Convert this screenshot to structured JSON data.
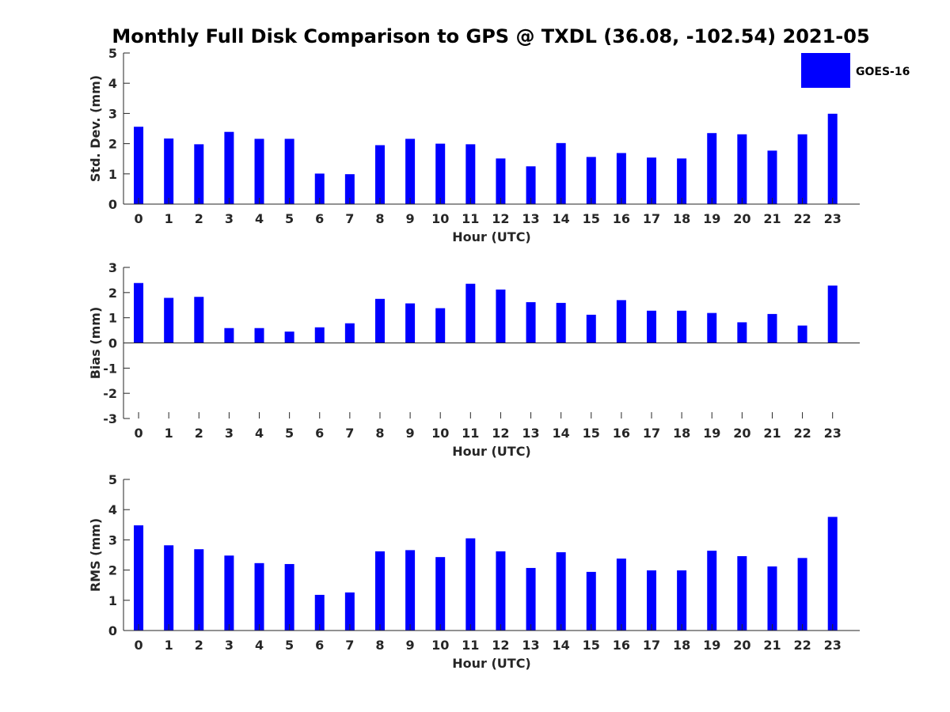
{
  "chart_data": {
    "title": "Monthly Full Disk Comparison to GPS @ TXDL (36.08, -102.54) 2021-05",
    "legend": {
      "position": "top-right",
      "entries": [
        {
          "label": "GOES-16",
          "color": "#0000ff"
        }
      ]
    },
    "bar_color": "#0000ff",
    "grid": false,
    "panels": [
      {
        "type": "bar",
        "xlabel": "Hour (UTC)",
        "ylabel": "Std. Dev. (mm)",
        "ylim": [
          0,
          5
        ],
        "yticks": [
          "0",
          "1",
          "2",
          "3",
          "4",
          "5"
        ],
        "categories": [
          "0",
          "1",
          "2",
          "3",
          "4",
          "5",
          "6",
          "7",
          "8",
          "9",
          "10",
          "11",
          "12",
          "13",
          "14",
          "15",
          "16",
          "17",
          "18",
          "19",
          "20",
          "21",
          "22",
          "23"
        ],
        "series": [
          {
            "name": "GOES-16",
            "values": [
              2.56,
              2.17,
              1.98,
              2.39,
              2.16,
              2.16,
              1.01,
              0.99,
              1.95,
              2.16,
              2.0,
              1.98,
              1.51,
              1.25,
              2.02,
              1.56,
              1.69,
              1.54,
              1.51,
              2.35,
              2.31,
              1.77,
              2.31,
              2.99
            ]
          }
        ]
      },
      {
        "type": "bar",
        "xlabel": "Hour (UTC)",
        "ylabel": "Bias (mm)",
        "ylim": [
          -3,
          3
        ],
        "yticks": [
          "-3",
          "-2",
          "-1",
          "0",
          "1",
          "2",
          "3"
        ],
        "categories": [
          "0",
          "1",
          "2",
          "3",
          "4",
          "5",
          "6",
          "7",
          "8",
          "9",
          "10",
          "11",
          "12",
          "13",
          "14",
          "15",
          "16",
          "17",
          "18",
          "19",
          "20",
          "21",
          "22",
          "23"
        ],
        "series": [
          {
            "name": "GOES-16",
            "values": [
              2.38,
              1.79,
              1.83,
              0.59,
              0.59,
              0.45,
              0.62,
              0.78,
              1.75,
              1.57,
              1.38,
              2.35,
              2.12,
              1.62,
              1.59,
              1.12,
              1.7,
              1.28,
              1.28,
              1.19,
              0.82,
              1.15,
              0.69,
              2.28
            ]
          }
        ]
      },
      {
        "type": "bar",
        "xlabel": "Hour (UTC)",
        "ylabel": "RMS (mm)",
        "ylim": [
          0,
          5
        ],
        "yticks": [
          "0",
          "1",
          "2",
          "3",
          "4",
          "5"
        ],
        "categories": [
          "0",
          "1",
          "2",
          "3",
          "4",
          "5",
          "6",
          "7",
          "8",
          "9",
          "10",
          "11",
          "12",
          "13",
          "14",
          "15",
          "16",
          "17",
          "18",
          "19",
          "20",
          "21",
          "22",
          "23"
        ],
        "series": [
          {
            "name": "GOES-16",
            "values": [
              3.48,
              2.82,
              2.69,
              2.48,
              2.23,
              2.2,
              1.18,
              1.26,
              2.62,
              2.66,
              2.43,
              3.05,
              2.62,
              2.07,
              2.59,
              1.94,
              2.38,
              1.99,
              1.99,
              2.64,
              2.46,
              2.12,
              2.4,
              3.76
            ]
          }
        ]
      }
    ]
  }
}
